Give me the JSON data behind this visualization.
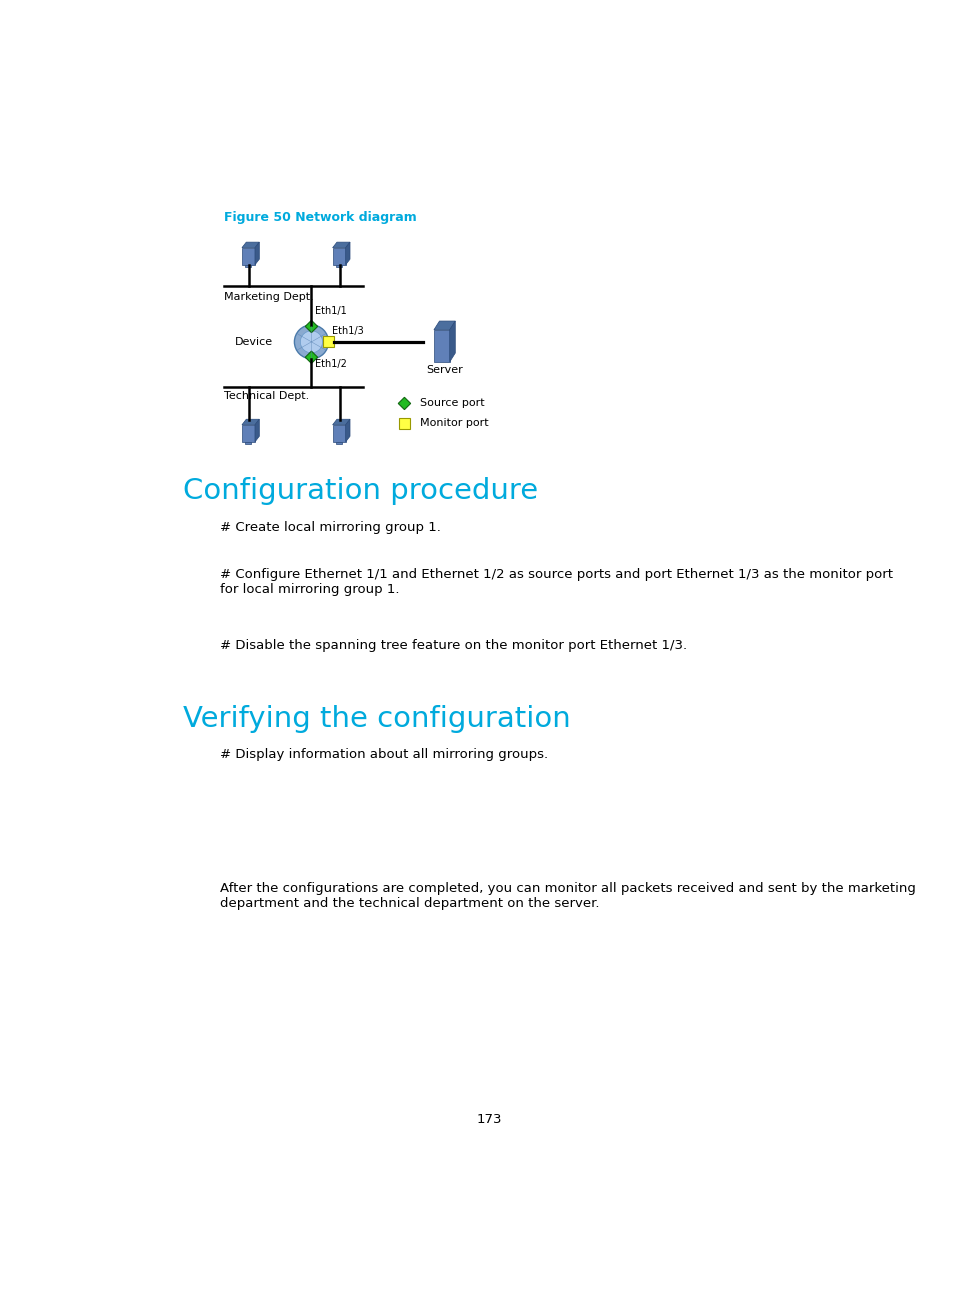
{
  "figure_title": "Figure 50 Network diagram",
  "figure_title_color": "#00AADD",
  "section1_title": "Configuration procedure",
  "section1_color": "#00AADD",
  "section2_title": "Verifying the configuration",
  "section2_color": "#00AADD",
  "para1": "# Create local mirroring group 1.",
  "para2": "# Configure Ethernet 1/1 and Ethernet 1/2 as source ports and port Ethernet 1/3 as the monitor port\nfor local mirroring group 1.",
  "para3": "# Disable the spanning tree feature on the monitor port Ethernet 1/3.",
  "para4": "# Display information about all mirroring groups.",
  "para5": "After the configurations are completed, you can monitor all packets received and sent by the marketing\ndepartment and the technical department on the server.",
  "page_number": "173",
  "bg_color": "#FFFFFF",
  "text_color": "#000000",
  "legend_source_label": "Source port",
  "legend_monitor_label": "Monitor port",
  "source_port_color": "#22BB22",
  "monitor_port_color": "#FFFF44",
  "marketing_label": "Marketing Dept.",
  "technical_label": "Technical Dept.",
  "device_label": "Device",
  "server_label": "Server",
  "eth11_label": "Eth1/1",
  "eth12_label": "Eth1/2",
  "eth13_label": "Eth1/3",
  "computer_color_front": "#6080B8",
  "computer_color_top": "#4B6E9E",
  "computer_color_right": "#3A5A8A",
  "server_color_front": "#6080B8",
  "server_color_top": "#4B6E9E",
  "server_color_right": "#3A5A8A",
  "switch_color": "#7090C0"
}
